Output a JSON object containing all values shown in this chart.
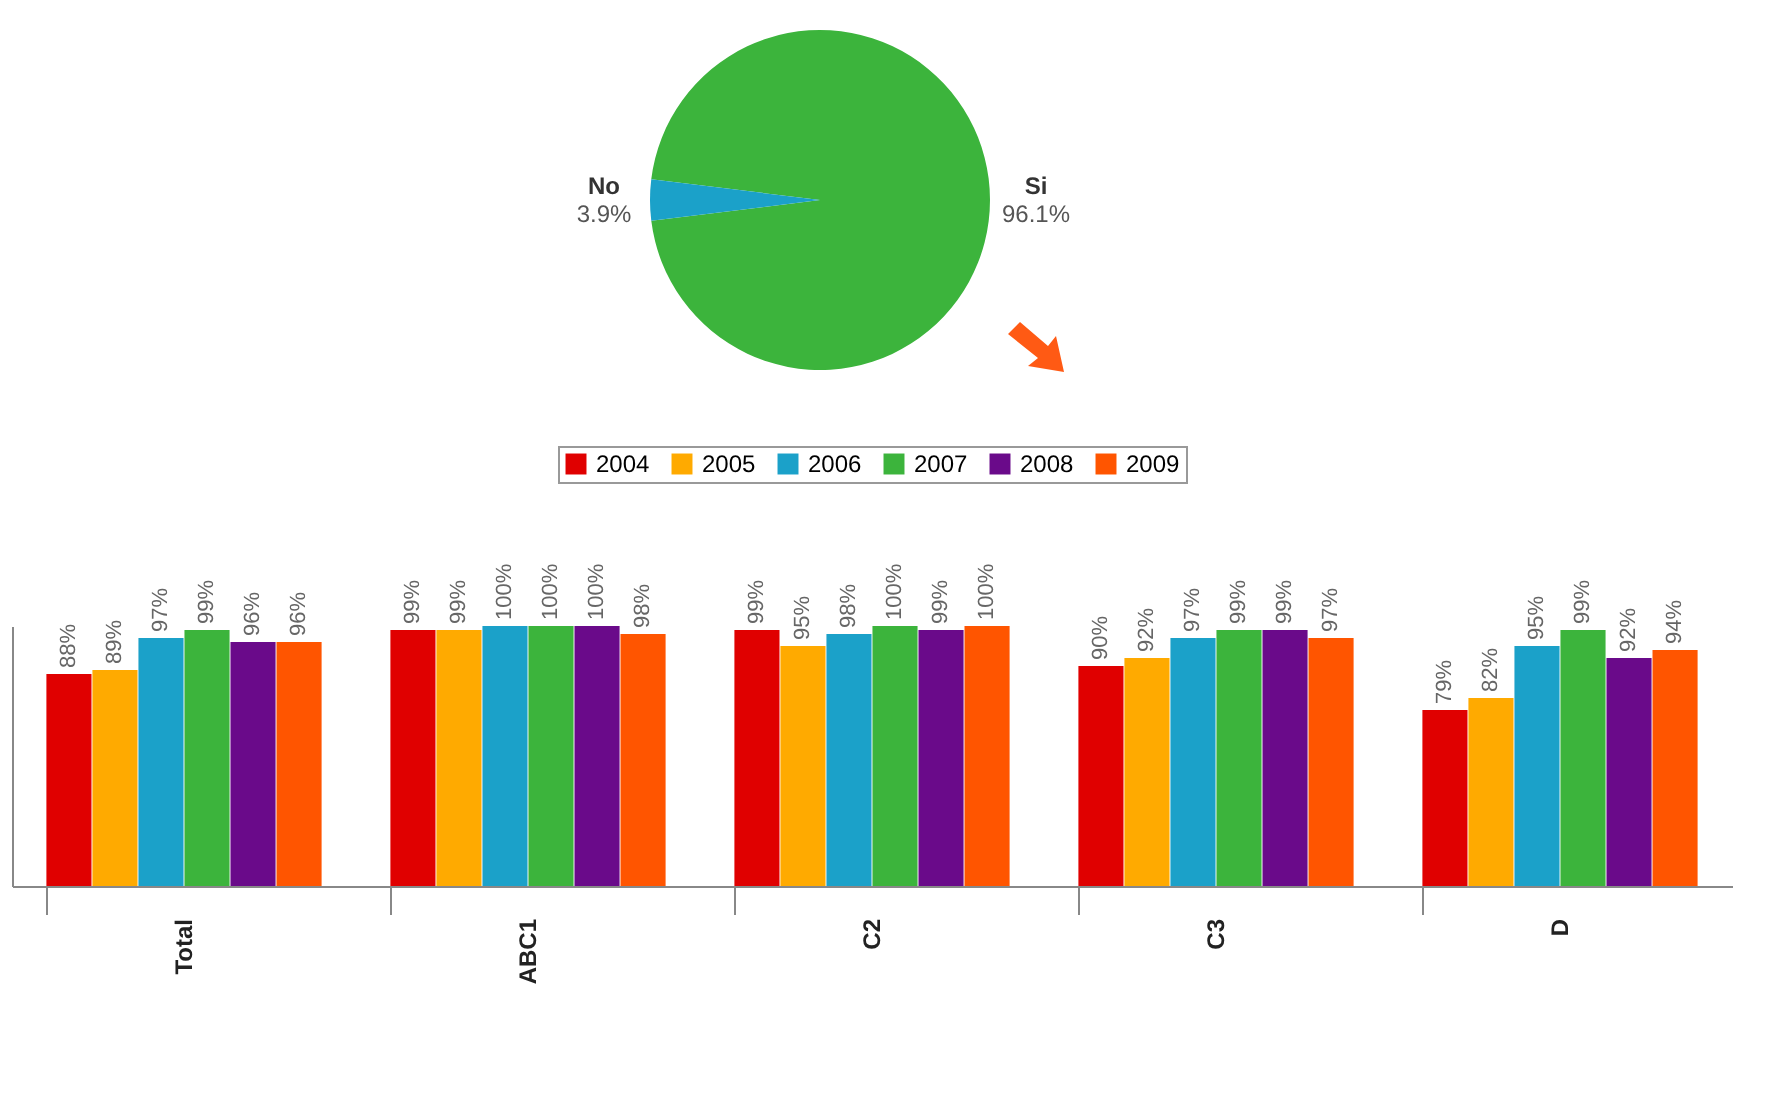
{
  "chart_data": [
    {
      "type": "pie",
      "categories": [
        "Si",
        "No"
      ],
      "values": [
        96.1,
        3.9
      ],
      "colors": [
        "#3cb43c",
        "#1ba1c9"
      ],
      "value_labels": [
        "96.1%",
        "3.9%"
      ]
    },
    {
      "type": "bar",
      "categories": [
        "Total",
        "ABC1",
        "C2",
        "C3",
        "D"
      ],
      "ylim": [
        35,
        100
      ],
      "tick_labels": "x",
      "legend": "top",
      "grid": false,
      "series": [
        {
          "name": "2004",
          "color": "#e00000",
          "values": [
            88,
            99,
            99,
            90,
            79
          ],
          "value_labels": [
            "88%",
            "99%",
            "99%",
            "90%",
            "79%"
          ]
        },
        {
          "name": "2005",
          "color": "#ffaa00",
          "values": [
            89,
            99,
            95,
            92,
            82
          ],
          "value_labels": [
            "89%",
            "99%",
            "95%",
            "92%",
            "82%"
          ]
        },
        {
          "name": "2006",
          "color": "#1ba1c9",
          "values": [
            97,
            100,
            98,
            97,
            95
          ],
          "value_labels": [
            "97%",
            "100%",
            "98%",
            "97%",
            "95%"
          ]
        },
        {
          "name": "2007",
          "color": "#3cb43c",
          "values": [
            99,
            100,
            100,
            99,
            99
          ],
          "value_labels": [
            "99%",
            "100%",
            "100%",
            "99%",
            "99%"
          ]
        },
        {
          "name": "2008",
          "color": "#6a0a8a",
          "values": [
            96,
            100,
            99,
            99,
            92
          ],
          "value_labels": [
            "96%",
            "100%",
            "99%",
            "99%",
            "92%"
          ]
        },
        {
          "name": "2009",
          "color": "#ff5500",
          "values": [
            96,
            98,
            100,
            97,
            94
          ],
          "value_labels": [
            "96%",
            "98%",
            "100%",
            "97%",
            "94%"
          ]
        }
      ]
    }
  ]
}
